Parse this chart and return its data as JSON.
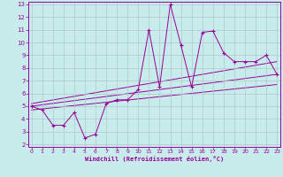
{
  "xlabel": "Windchill (Refroidissement éolien,°C)",
  "bg_color": "#c8ecec",
  "line_color": "#990099",
  "grid_color": "#b0c8cc",
  "xlim": [
    0,
    23
  ],
  "ylim": [
    2,
    13
  ],
  "xticks": [
    0,
    1,
    2,
    3,
    4,
    5,
    6,
    7,
    8,
    9,
    10,
    11,
    12,
    13,
    14,
    15,
    16,
    17,
    18,
    19,
    20,
    21,
    22,
    23
  ],
  "yticks": [
    2,
    3,
    4,
    5,
    6,
    7,
    8,
    9,
    10,
    11,
    12,
    13
  ],
  "series_x": [
    0,
    1,
    2,
    3,
    4,
    5,
    6,
    7,
    8,
    9,
    10,
    11,
    12,
    13,
    14,
    15,
    16,
    17,
    18,
    19,
    20,
    21,
    22,
    23
  ],
  "series_y": [
    5.0,
    4.7,
    3.5,
    3.5,
    4.5,
    2.5,
    2.8,
    5.2,
    5.5,
    5.5,
    6.3,
    11.0,
    6.5,
    13.0,
    9.8,
    6.5,
    10.8,
    10.9,
    9.2,
    8.5,
    8.5,
    8.5,
    9.0,
    7.5
  ],
  "regression_lines": [
    {
      "x0": 0,
      "y0": 5.0,
      "x1": 23,
      "y1": 7.5
    },
    {
      "x0": 0,
      "y0": 4.7,
      "x1": 23,
      "y1": 6.7
    },
    {
      "x0": 0,
      "y0": 5.2,
      "x1": 23,
      "y1": 8.5
    }
  ]
}
